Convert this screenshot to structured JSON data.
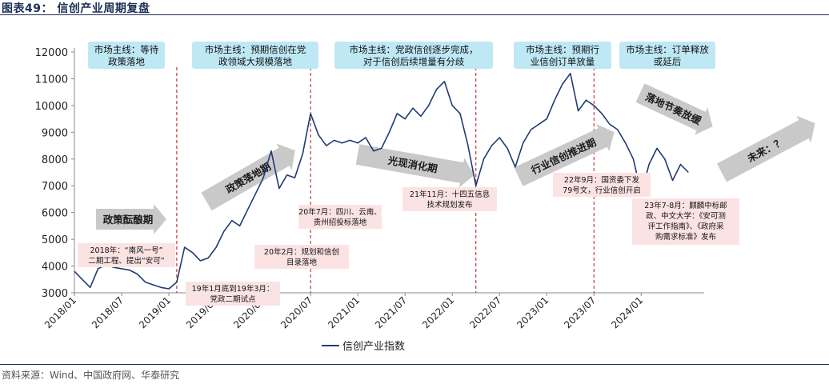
{
  "title": "图表49：  信创产业周期复盘",
  "source": "资料来源：Wind、中国政府网、华泰研究",
  "chart_data": {
    "type": "line",
    "title": "",
    "xlabel": "",
    "ylabel": "",
    "ylim": [
      3000,
      12000
    ],
    "y_ticks": [
      "3000",
      "4000",
      "5000",
      "6000",
      "7000",
      "8000",
      "9000",
      "10000",
      "11000",
      "12000"
    ],
    "x_ticks": [
      "2018/01",
      "2018/07",
      "2019/01",
      "2019/07",
      "2020/01",
      "2020/07",
      "2021/01",
      "2021/07",
      "2022/01",
      "2022/07",
      "2023/01",
      "2023/07",
      "2024/01"
    ],
    "legend_position": "bottom",
    "series": [
      {
        "name": "信创产业指数",
        "color": "#1f3b73",
        "points": [
          [
            "2018/01",
            3800
          ],
          [
            "2018/02",
            3500
          ],
          [
            "2018/03",
            3200
          ],
          [
            "2018/04",
            3900
          ],
          [
            "2018/05",
            4050
          ],
          [
            "2018/06",
            3950
          ],
          [
            "2018/07",
            3900
          ],
          [
            "2018/08",
            3850
          ],
          [
            "2018/09",
            3700
          ],
          [
            "2018/10",
            3400
          ],
          [
            "2018/11",
            3300
          ],
          [
            "2018/12",
            3200
          ],
          [
            "2019/01",
            3150
          ],
          [
            "2019/02",
            3400
          ],
          [
            "2019/03",
            4700
          ],
          [
            "2019/04",
            4500
          ],
          [
            "2019/05",
            4200
          ],
          [
            "2019/06",
            4300
          ],
          [
            "2019/07",
            4700
          ],
          [
            "2019/08",
            5300
          ],
          [
            "2019/09",
            5700
          ],
          [
            "2019/10",
            5500
          ],
          [
            "2019/11",
            6100
          ],
          [
            "2019/12",
            6700
          ],
          [
            "2020/01",
            7300
          ],
          [
            "2020/02",
            8300
          ],
          [
            "2020/03",
            6900
          ],
          [
            "2020/04",
            7400
          ],
          [
            "2020/05",
            7300
          ],
          [
            "2020/06",
            8200
          ],
          [
            "2020/07",
            9700
          ],
          [
            "2020/08",
            8900
          ],
          [
            "2020/09",
            8500
          ],
          [
            "2020/10",
            8700
          ],
          [
            "2020/11",
            8600
          ],
          [
            "2020/12",
            8700
          ],
          [
            "2021/01",
            8600
          ],
          [
            "2021/02",
            8800
          ],
          [
            "2021/03",
            8300
          ],
          [
            "2021/04",
            8400
          ],
          [
            "2021/05",
            9000
          ],
          [
            "2021/06",
            9700
          ],
          [
            "2021/07",
            9500
          ],
          [
            "2021/08",
            9900
          ],
          [
            "2021/09",
            9600
          ],
          [
            "2021/10",
            10000
          ],
          [
            "2021/11",
            10600
          ],
          [
            "2021/12",
            10900
          ],
          [
            "2022/01",
            10000
          ],
          [
            "2022/02",
            9700
          ],
          [
            "2022/03",
            8500
          ],
          [
            "2022/04",
            7000
          ],
          [
            "2022/05",
            8000
          ],
          [
            "2022/06",
            8500
          ],
          [
            "2022/07",
            8800
          ],
          [
            "2022/08",
            8400
          ],
          [
            "2022/09",
            7700
          ],
          [
            "2022/10",
            8600
          ],
          [
            "2022/11",
            9100
          ],
          [
            "2022/12",
            9300
          ],
          [
            "2023/01",
            9500
          ],
          [
            "2023/02",
            10200
          ],
          [
            "2023/03",
            10800
          ],
          [
            "2023/04",
            11200
          ],
          [
            "2023/05",
            9800
          ],
          [
            "2023/06",
            10200
          ],
          [
            "2023/07",
            10000
          ],
          [
            "2023/08",
            9700
          ],
          [
            "2023/09",
            9300
          ],
          [
            "2023/10",
            9100
          ],
          [
            "2023/11",
            8600
          ],
          [
            "2023/12",
            8000
          ],
          [
            "2024/01",
            6700
          ],
          [
            "2024/02",
            7800
          ],
          [
            "2024/03",
            8400
          ],
          [
            "2024/04",
            8000
          ],
          [
            "2024/05",
            7200
          ],
          [
            "2024/06",
            7800
          ],
          [
            "2024/07",
            7500
          ]
        ]
      }
    ],
    "phase_dividers": [
      "2019/02",
      "2020/07",
      "2022/04",
      "2023/07"
    ],
    "phase_boxes": [
      [
        "市场主线：等待",
        "政策落地"
      ],
      [
        "市场主线：预期信创在党",
        "政领域大规模落地"
      ],
      [
        "市场主线：党政信创逐步完成，",
        "对于信创后续增量有分歧"
      ],
      [
        "市场主线：预期行",
        "业信创订单放量"
      ],
      [
        "市场主线：订单释放",
        "或延后"
      ]
    ],
    "arrows": [
      "政策酝酿期",
      "政策落地期",
      "光现消化期",
      "行业信创推进期",
      "落地节奏放缓",
      "未来：？"
    ],
    "annotations": [
      [
        "2018年：“南风一号”",
        "二期工程、提出“安可”"
      ],
      [
        "19年1月底到19年3月：",
        "党政二期试点"
      ],
      [
        "20年2月：规划和信创",
        "目录落地"
      ],
      [
        "20年7月：四川、云南、",
        "贵州招投标落地"
      ],
      [
        "21年11月：十四五信息",
        "技术规划发布"
      ],
      [
        "22年9月：国资委下发",
        "79号文，行业信创开启"
      ],
      [
        "23年7-8月：麒麟中标邮",
        "政、中文大学：《安可测",
        "评工作指南》、《政府采",
        "购需求标准》发布"
      ]
    ]
  }
}
